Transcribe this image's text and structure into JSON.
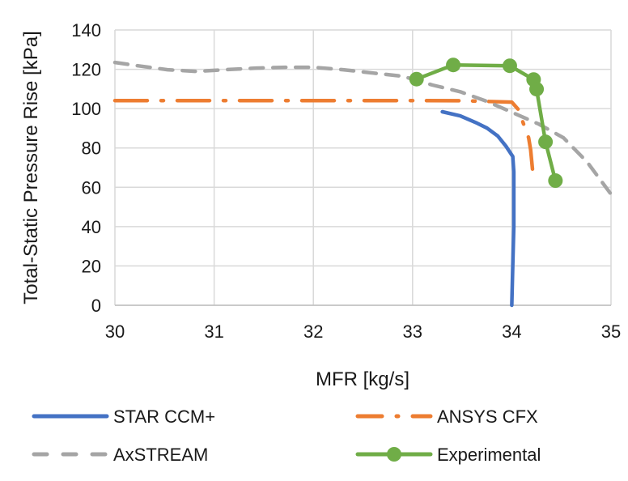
{
  "chart_data": {
    "type": "line",
    "title": "",
    "xlabel": "MFR [kg/s]",
    "ylabel": "Total-Static Pressure Rise [kPa]",
    "xlim": [
      30,
      35
    ],
    "ylim": [
      0,
      140
    ],
    "xticks": [
      30,
      31,
      32,
      33,
      34,
      35
    ],
    "yticks": [
      0,
      20,
      40,
      60,
      80,
      100,
      120,
      140
    ],
    "x_tick_labels": [
      "30",
      "31",
      "32",
      "33",
      "34",
      "35"
    ],
    "y_tick_labels": [
      "0",
      "20",
      "40",
      "60",
      "80",
      "100",
      "120",
      "140"
    ],
    "grid": true,
    "legend_position": "bottom",
    "series": [
      {
        "name": "STAR CCM+",
        "color": "#4472C4",
        "style": "solid",
        "marker": "none",
        "x": [
          33.3,
          33.48,
          33.65,
          33.75,
          33.86,
          33.94,
          34.01,
          34.02,
          34.02,
          34.01,
          34.0
        ],
        "y": [
          98.4,
          96.3,
          92.6,
          90.1,
          86.0,
          81.0,
          75.7,
          67.9,
          40.0,
          20.0,
          0.0
        ]
      },
      {
        "name": "ANSYS CFX",
        "color": "#ED7D31",
        "style": "dash-dot",
        "marker": "none",
        "x": [
          30.0,
          31.0,
          32.0,
          33.0,
          33.5,
          34.0,
          34.08,
          34.11,
          34.17,
          34.19,
          34.21
        ],
        "y": [
          104.1,
          104.1,
          104.1,
          104.1,
          104.0,
          103.3,
          98.8,
          93.4,
          85.2,
          79.0,
          68.7
        ]
      },
      {
        "name": "AxSTREAM",
        "color": "#A5A5A5",
        "style": "dashed",
        "marker": "none",
        "x": [
          30.0,
          30.23,
          30.53,
          30.82,
          31.11,
          31.42,
          31.72,
          32.0,
          32.3,
          32.6,
          32.9,
          33.2,
          33.48,
          33.75,
          34.03,
          34.27,
          34.52,
          34.76,
          35.0
        ],
        "y": [
          123.5,
          121.8,
          119.8,
          118.9,
          119.8,
          120.6,
          121.0,
          121.0,
          119.8,
          118.1,
          116.5,
          112.0,
          108.6,
          103.7,
          97.5,
          92.2,
          85.2,
          72.8,
          56.5
        ]
      },
      {
        "name": "Experimental",
        "color": "#70AD47",
        "style": "solid",
        "marker": "circle",
        "x": [
          33.04,
          33.41,
          33.98,
          34.22,
          34.25,
          34.34,
          34.44
        ],
        "y": [
          115.0,
          122.2,
          121.8,
          114.8,
          109.9,
          83.1,
          63.4
        ]
      }
    ]
  }
}
